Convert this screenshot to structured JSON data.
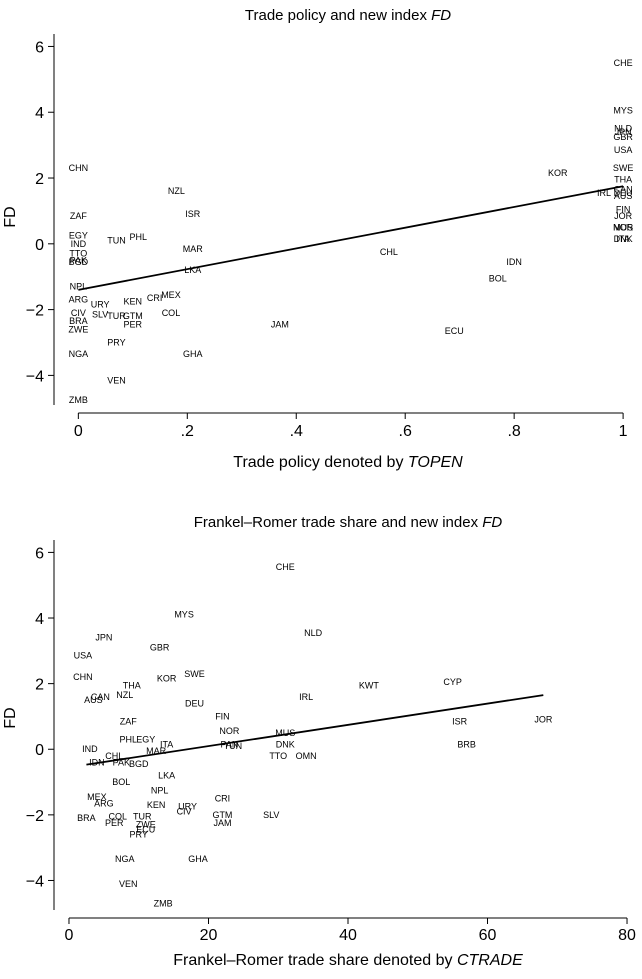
{
  "chart_data": [
    {
      "type": "scatter",
      "title": "Trade policy and new index ",
      "title_italic": "FD",
      "xlabel": "Trade policy denoted by ",
      "xlabel_italic": "TOPEN",
      "ylabel": "FD",
      "xlim": [
        -0.03,
        1.02
      ],
      "ylim": [
        -4.9,
        6.5
      ],
      "xticks": [
        0,
        0.2,
        0.4,
        0.6,
        0.8,
        1
      ],
      "xtick_labels": [
        "0",
        ".2",
        ".4",
        ".6",
        ".8",
        "1"
      ],
      "yticks": [
        -4,
        -2,
        0,
        2,
        4,
        6
      ],
      "ytick_labels": [
        "−4",
        "−2",
        "0",
        "2",
        "4",
        "6"
      ],
      "fit_line": {
        "x": [
          0,
          1
        ],
        "y": [
          -1.4,
          1.75
        ]
      },
      "points": [
        {
          "label": "CHE",
          "x": 1.0,
          "y": 5.5
        },
        {
          "label": "MYS",
          "x": 1.0,
          "y": 4.05
        },
        {
          "label": "NLD",
          "x": 1.0,
          "y": 3.5
        },
        {
          "label": "JPN",
          "x": 1.0,
          "y": 3.4
        },
        {
          "label": "GBR",
          "x": 1.0,
          "y": 3.25
        },
        {
          "label": "USA",
          "x": 1.0,
          "y": 2.85
        },
        {
          "label": "SWE",
          "x": 1.0,
          "y": 2.3
        },
        {
          "label": "THA",
          "x": 1.0,
          "y": 1.95
        },
        {
          "label": "CAN",
          "x": 1.0,
          "y": 1.65
        },
        {
          "label": "IRL",
          "x": 0.965,
          "y": 1.55
        },
        {
          "label": "DEU",
          "x": 1.0,
          "y": 1.55
        },
        {
          "label": "AUS",
          "x": 1.0,
          "y": 1.45
        },
        {
          "label": "FIN",
          "x": 1.0,
          "y": 1.05
        },
        {
          "label": "JOR",
          "x": 1.0,
          "y": 0.85
        },
        {
          "label": "NOR",
          "x": 1.0,
          "y": 0.5
        },
        {
          "label": "MUS",
          "x": 1.0,
          "y": 0.5
        },
        {
          "label": "DNK",
          "x": 1.0,
          "y": 0.15
        },
        {
          "label": "ITA",
          "x": 1.0,
          "y": 0.15
        },
        {
          "label": "KOR",
          "x": 0.88,
          "y": 2.15
        },
        {
          "label": "NZL",
          "x": 0.18,
          "y": 1.6
        },
        {
          "label": "CHN",
          "x": 0.0,
          "y": 2.3
        },
        {
          "label": "ZAF",
          "x": 0.0,
          "y": 0.85
        },
        {
          "label": "ISR",
          "x": 0.21,
          "y": 0.9
        },
        {
          "label": "EGY",
          "x": 0.0,
          "y": 0.25
        },
        {
          "label": "IND",
          "x": 0.0,
          "y": 0.0
        },
        {
          "label": "TUN",
          "x": 0.07,
          "y": 0.1
        },
        {
          "label": "PHL",
          "x": 0.11,
          "y": 0.2
        },
        {
          "label": "MAR",
          "x": 0.21,
          "y": -0.15
        },
        {
          "label": "TTO",
          "x": 0.0,
          "y": -0.3
        },
        {
          "label": "PAK",
          "x": 0.0,
          "y": -0.5
        },
        {
          "label": "BGD",
          "x": 0.0,
          "y": -0.55
        },
        {
          "label": "CHL",
          "x": 0.57,
          "y": -0.25
        },
        {
          "label": "IDN",
          "x": 0.8,
          "y": -0.55
        },
        {
          "label": "BOL",
          "x": 0.77,
          "y": -1.05
        },
        {
          "label": "LKA",
          "x": 0.21,
          "y": -0.8
        },
        {
          "label": "NPL",
          "x": 0.0,
          "y": -1.3
        },
        {
          "label": "ARG",
          "x": 0.0,
          "y": -1.7
        },
        {
          "label": "URY",
          "x": 0.04,
          "y": -1.85
        },
        {
          "label": "MEX",
          "x": 0.17,
          "y": -1.55
        },
        {
          "label": "CRI",
          "x": 0.14,
          "y": -1.65
        },
        {
          "label": "KEN",
          "x": 0.1,
          "y": -1.75
        },
        {
          "label": "CIV",
          "x": 0.0,
          "y": -2.1
        },
        {
          "label": "SLV",
          "x": 0.04,
          "y": -2.15
        },
        {
          "label": "TUR",
          "x": 0.07,
          "y": -2.2
        },
        {
          "label": "GTM",
          "x": 0.1,
          "y": -2.2
        },
        {
          "label": "BRA",
          "x": 0.0,
          "y": -2.35
        },
        {
          "label": "ZWE",
          "x": 0.0,
          "y": -2.6
        },
        {
          "label": "PER",
          "x": 0.1,
          "y": -2.45
        },
        {
          "label": "COL",
          "x": 0.17,
          "y": -2.1
        },
        {
          "label": "PRY",
          "x": 0.07,
          "y": -3.0
        },
        {
          "label": "JAM",
          "x": 0.37,
          "y": -2.45
        },
        {
          "label": "ECU",
          "x": 0.69,
          "y": -2.65
        },
        {
          "label": "GHA",
          "x": 0.21,
          "y": -3.35
        },
        {
          "label": "NGA",
          "x": 0.0,
          "y": -3.35
        },
        {
          "label": "VEN",
          "x": 0.07,
          "y": -4.15
        },
        {
          "label": "ZMB",
          "x": 0.0,
          "y": -4.75
        }
      ]
    },
    {
      "type": "scatter",
      "title": "Frankel–Romer trade share and new index ",
      "title_italic": "FD",
      "xlabel": "Frankel–Romer trade share denoted by ",
      "xlabel_italic": "CTRADE",
      "ylabel": "FD",
      "xlim": [
        -1,
        81
      ],
      "ylim": [
        -4.9,
        6.5
      ],
      "xticks": [
        0,
        20,
        40,
        60,
        80
      ],
      "xtick_labels": [
        "0",
        "20",
        "40",
        "60",
        "80"
      ],
      "yticks": [
        -4,
        -2,
        0,
        2,
        4,
        6
      ],
      "ytick_labels": [
        "−4",
        "−2",
        "0",
        "2",
        "4",
        "6"
      ],
      "fit_line": {
        "x": [
          2.5,
          68
        ],
        "y": [
          -0.47,
          1.65
        ]
      },
      "points": [
        {
          "label": "CHE",
          "x": 31,
          "y": 5.55
        },
        {
          "label": "MYS",
          "x": 16.5,
          "y": 4.1
        },
        {
          "label": "NLD",
          "x": 35,
          "y": 3.55
        },
        {
          "label": "JPN",
          "x": 5,
          "y": 3.4
        },
        {
          "label": "GBR",
          "x": 13,
          "y": 3.1
        },
        {
          "label": "USA",
          "x": 2,
          "y": 2.85
        },
        {
          "label": "CHN",
          "x": 2,
          "y": 2.2
        },
        {
          "label": "THA",
          "x": 9,
          "y": 1.95
        },
        {
          "label": "KOR",
          "x": 14,
          "y": 2.15
        },
        {
          "label": "SWE",
          "x": 18,
          "y": 2.3
        },
        {
          "label": "KWT",
          "x": 43,
          "y": 1.95
        },
        {
          "label": "CYP",
          "x": 55,
          "y": 2.05
        },
        {
          "label": "CAN",
          "x": 4.5,
          "y": 1.6
        },
        {
          "label": "NZL",
          "x": 8,
          "y": 1.65
        },
        {
          "label": "AUS",
          "x": 3.5,
          "y": 1.5
        },
        {
          "label": "IRL",
          "x": 34,
          "y": 1.6
        },
        {
          "label": "DEU",
          "x": 18,
          "y": 1.4
        },
        {
          "label": "FIN",
          "x": 22,
          "y": 1.0
        },
        {
          "label": "ZAF",
          "x": 8.5,
          "y": 0.85
        },
        {
          "label": "NOR",
          "x": 23,
          "y": 0.55
        },
        {
          "label": "MUS",
          "x": 31,
          "y": 0.5
        },
        {
          "label": "ISR",
          "x": 56,
          "y": 0.85
        },
        {
          "label": "JOR",
          "x": 68,
          "y": 0.9
        },
        {
          "label": "BRB",
          "x": 57,
          "y": 0.15
        },
        {
          "label": "PHL",
          "x": 8.5,
          "y": 0.3
        },
        {
          "label": "EGY",
          "x": 11,
          "y": 0.3
        },
        {
          "label": "ITA",
          "x": 14,
          "y": 0.15
        },
        {
          "label": "PAN",
          "x": 23,
          "y": 0.15
        },
        {
          "label": "TUN",
          "x": 23.5,
          "y": 0.1
        },
        {
          "label": "DNK",
          "x": 31,
          "y": 0.15
        },
        {
          "label": "IND",
          "x": 3,
          "y": 0.0
        },
        {
          "label": "MAR",
          "x": 12.5,
          "y": -0.05
        },
        {
          "label": "CHL",
          "x": 6.5,
          "y": -0.2
        },
        {
          "label": "TTO",
          "x": 30,
          "y": -0.2
        },
        {
          "label": "OMN",
          "x": 34,
          "y": -0.2
        },
        {
          "label": "IDN",
          "x": 4,
          "y": -0.4
        },
        {
          "label": "PAK",
          "x": 7.5,
          "y": -0.4
        },
        {
          "label": "BGD",
          "x": 10,
          "y": -0.45
        },
        {
          "label": "LKA",
          "x": 14,
          "y": -0.8
        },
        {
          "label": "BOL",
          "x": 7.5,
          "y": -1.0
        },
        {
          "label": "NPL",
          "x": 13,
          "y": -1.25
        },
        {
          "label": "MEX",
          "x": 4,
          "y": -1.45
        },
        {
          "label": "ARG",
          "x": 5,
          "y": -1.65
        },
        {
          "label": "CRI",
          "x": 22,
          "y": -1.5
        },
        {
          "label": "KEN",
          "x": 12.5,
          "y": -1.7
        },
        {
          "label": "URY",
          "x": 17,
          "y": -1.75
        },
        {
          "label": "CIV",
          "x": 16.5,
          "y": -1.9
        },
        {
          "label": "SLV",
          "x": 29,
          "y": -2.0
        },
        {
          "label": "GTM",
          "x": 22,
          "y": -2.0
        },
        {
          "label": "TUR",
          "x": 10.5,
          "y": -2.05
        },
        {
          "label": "COL",
          "x": 7,
          "y": -2.05
        },
        {
          "label": "BRA",
          "x": 2.5,
          "y": -2.1
        },
        {
          "label": "PER",
          "x": 6.5,
          "y": -2.25
        },
        {
          "label": "ZWE",
          "x": 11,
          "y": -2.3
        },
        {
          "label": "ECU",
          "x": 11,
          "y": -2.45
        },
        {
          "label": "JAM",
          "x": 22,
          "y": -2.25
        },
        {
          "label": "PRY",
          "x": 10,
          "y": -2.6
        },
        {
          "label": "NGA",
          "x": 8,
          "y": -3.35
        },
        {
          "label": "GHA",
          "x": 18.5,
          "y": -3.35
        },
        {
          "label": "VEN",
          "x": 8.5,
          "y": -4.1
        },
        {
          "label": "ZMB",
          "x": 13.5,
          "y": -4.7
        }
      ]
    }
  ]
}
